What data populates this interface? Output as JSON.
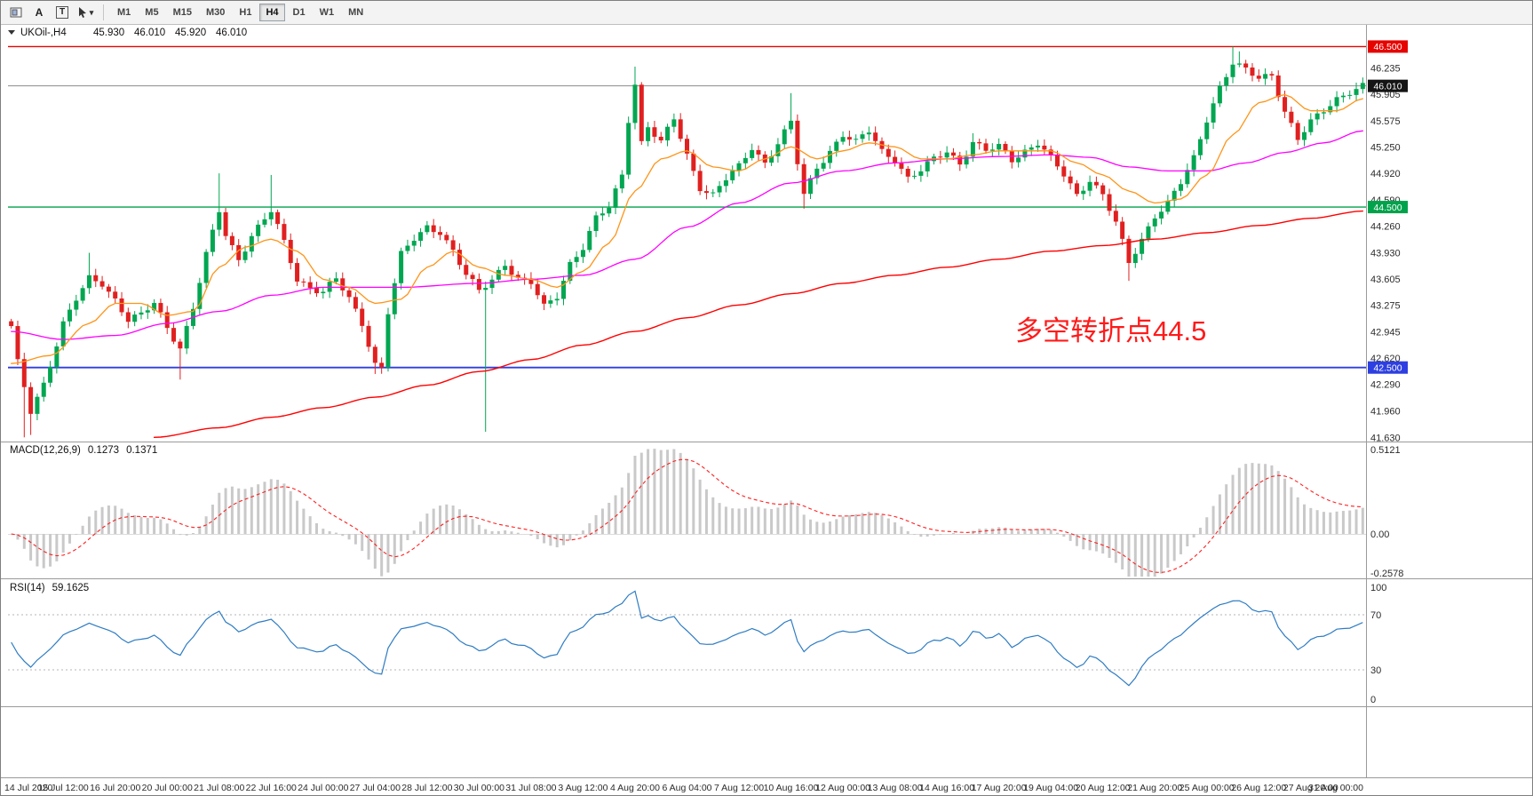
{
  "toolbar": {
    "tool_a_label": "A",
    "tool_t_label": "T",
    "timeframes": [
      "M1",
      "M5",
      "M15",
      "M30",
      "H1",
      "H4",
      "D1",
      "W1",
      "MN"
    ],
    "active_timeframe": "H4"
  },
  "header": {
    "symbol": "UKOil-,H4",
    "open": "45.930",
    "high": "46.010",
    "low": "45.920",
    "close": "46.010"
  },
  "annotation": {
    "text": "多空转折点44.5",
    "color": "#ff1a1a"
  },
  "price_axis": {
    "labels": [
      "46.235",
      "45.905",
      "45.575",
      "45.250",
      "44.920",
      "44.590",
      "44.260",
      "43.930",
      "43.605",
      "43.275",
      "42.945",
      "42.620",
      "42.290",
      "41.960",
      "41.630"
    ],
    "badges": [
      {
        "text": "46.500",
        "price": 46.5,
        "color": "#e60400"
      },
      {
        "text": "46.010",
        "price": 46.01,
        "color": "#151515"
      },
      {
        "text": "44.500",
        "price": 44.5,
        "color": "#00a24b"
      },
      {
        "text": "42.500",
        "price": 42.5,
        "color": "#2d3fe0"
      }
    ]
  },
  "time_axis": {
    "labels": [
      "14 Jul 2020",
      "15 Jul 12:00",
      "16 Jul 20:00",
      "20 Jul 00:00",
      "21 Jul 08:00",
      "22 Jul 16:00",
      "24 Jul 00:00",
      "27 Jul 04:00",
      "28 Jul 12:00",
      "30 Jul 00:00",
      "31 Jul 08:00",
      "3 Aug 12:00",
      "4 Aug 20:00",
      "6 Aug 04:00",
      "7 Aug 12:00",
      "10 Aug 16:00",
      "12 Aug 00:00",
      "13 Aug 08:00",
      "14 Aug 16:00",
      "17 Aug 20:00",
      "19 Aug 04:00",
      "20 Aug 12:00",
      "21 Aug 20:00",
      "25 Aug 00:00",
      "26 Aug 12:00",
      "27 Aug 20:00",
      "31 Aug 00:00"
    ]
  },
  "indicators": {
    "macd": {
      "name": "MACD(12,26,9)",
      "value_main": "0.1273",
      "value_signal": "0.1371",
      "fast": 12,
      "slow": 26,
      "signal": 9,
      "scale": [
        {
          "text": "0.5121",
          "value": 0.5121
        },
        {
          "text": "0.00",
          "value": 0
        },
        {
          "text": "-0.2578",
          "value": -0.2578
        }
      ],
      "histogram_color": "#c9c9c9",
      "signal_color": "#ff2020"
    },
    "rsi": {
      "name": "RSI(14)",
      "value": "59.1625",
      "period": 14,
      "scale": [
        {
          "text": "100",
          "value": 100
        },
        {
          "text": "70",
          "value": 70
        },
        {
          "text": "30",
          "value": 30
        },
        {
          "text": "0",
          "value": 0
        }
      ],
      "levels": [
        70,
        30
      ],
      "line_color": "#2e7cc3"
    }
  },
  "chart_data": {
    "type": "candlestick",
    "symbol": "UKOil-",
    "timeframe": "H4",
    "current": {
      "open": 45.93,
      "high": 46.01,
      "low": 45.92,
      "close": 46.01
    },
    "bars": 209,
    "price_range": [
      41.6,
      46.56
    ],
    "up_color": "#00a651",
    "down_color": "#e02020",
    "close_keyframes": [
      [
        0,
        43.0
      ],
      [
        1,
        42.55
      ],
      [
        3,
        41.95
      ],
      [
        5,
        42.3
      ],
      [
        8,
        43.05
      ],
      [
        10,
        43.35
      ],
      [
        12,
        43.6
      ],
      [
        14,
        43.55
      ],
      [
        16,
        43.35
      ],
      [
        18,
        43.1
      ],
      [
        20,
        43.15
      ],
      [
        22,
        43.3
      ],
      [
        24,
        43.0
      ],
      [
        26,
        42.75
      ],
      [
        28,
        43.25
      ],
      [
        30,
        43.9
      ],
      [
        32,
        44.45
      ],
      [
        33,
        44.15
      ],
      [
        35,
        43.85
      ],
      [
        37,
        44.15
      ],
      [
        40,
        44.45
      ],
      [
        42,
        44.05
      ],
      [
        44,
        43.6
      ],
      [
        46,
        43.5
      ],
      [
        48,
        43.45
      ],
      [
        50,
        43.6
      ],
      [
        52,
        43.35
      ],
      [
        54,
        43.05
      ],
      [
        56,
        42.55
      ],
      [
        57,
        42.5
      ],
      [
        58,
        43.2
      ],
      [
        60,
        43.9
      ],
      [
        62,
        44.1
      ],
      [
        64,
        44.25
      ],
      [
        66,
        44.2
      ],
      [
        68,
        43.95
      ],
      [
        70,
        43.65
      ],
      [
        72,
        43.45
      ],
      [
        74,
        43.6
      ],
      [
        76,
        43.8
      ],
      [
        78,
        43.6
      ],
      [
        80,
        43.55
      ],
      [
        82,
        43.25
      ],
      [
        84,
        43.4
      ],
      [
        86,
        43.8
      ],
      [
        88,
        44.0
      ],
      [
        90,
        44.35
      ],
      [
        92,
        44.5
      ],
      [
        94,
        44.9
      ],
      [
        95,
        45.6
      ],
      [
        96,
        46.05
      ],
      [
        97,
        45.3
      ],
      [
        98,
        45.5
      ],
      [
        100,
        45.3
      ],
      [
        102,
        45.6
      ],
      [
        104,
        45.15
      ],
      [
        106,
        44.75
      ],
      [
        108,
        44.65
      ],
      [
        110,
        44.85
      ],
      [
        112,
        45.0
      ],
      [
        114,
        45.25
      ],
      [
        116,
        45.05
      ],
      [
        118,
        45.3
      ],
      [
        120,
        45.55
      ],
      [
        121,
        45.05
      ],
      [
        122,
        44.65
      ],
      [
        124,
        45.0
      ],
      [
        126,
        45.2
      ],
      [
        128,
        45.4
      ],
      [
        130,
        45.3
      ],
      [
        132,
        45.45
      ],
      [
        134,
        45.2
      ],
      [
        136,
        45.1
      ],
      [
        138,
        44.85
      ],
      [
        140,
        44.95
      ],
      [
        142,
        45.1
      ],
      [
        144,
        45.2
      ],
      [
        146,
        45.05
      ],
      [
        148,
        45.3
      ],
      [
        150,
        45.2
      ],
      [
        152,
        45.25
      ],
      [
        154,
        45.1
      ],
      [
        156,
        45.2
      ],
      [
        158,
        45.3
      ],
      [
        160,
        45.1
      ],
      [
        162,
        44.9
      ],
      [
        164,
        44.65
      ],
      [
        166,
        44.85
      ],
      [
        168,
        44.65
      ],
      [
        170,
        44.3
      ],
      [
        172,
        43.8
      ],
      [
        174,
        44.1
      ],
      [
        176,
        44.4
      ],
      [
        178,
        44.55
      ],
      [
        180,
        44.8
      ],
      [
        182,
        45.1
      ],
      [
        184,
        45.6
      ],
      [
        186,
        46.0
      ],
      [
        188,
        46.3
      ],
      [
        190,
        46.2
      ],
      [
        192,
        46.1
      ],
      [
        194,
        46.15
      ],
      [
        196,
        45.7
      ],
      [
        198,
        45.35
      ],
      [
        200,
        45.55
      ],
      [
        202,
        45.7
      ],
      [
        204,
        45.85
      ],
      [
        206,
        45.95
      ],
      [
        208,
        46.01
      ]
    ],
    "wick_highs": [
      [
        12,
        43.93
      ],
      [
        32,
        44.92
      ],
      [
        40,
        44.9
      ],
      [
        96,
        46.25
      ],
      [
        120,
        45.92
      ],
      [
        148,
        45.42
      ],
      [
        188,
        46.5
      ],
      [
        189,
        46.44
      ]
    ],
    "wick_lows": [
      [
        2,
        41.63
      ],
      [
        3,
        41.66
      ],
      [
        26,
        42.35
      ],
      [
        56,
        42.42
      ],
      [
        73,
        41.7
      ],
      [
        122,
        44.48
      ],
      [
        172,
        43.58
      ]
    ],
    "hlines": [
      {
        "price": 46.5,
        "color": "#e60400",
        "w": 1.4
      },
      {
        "price": 44.5,
        "color": "#00a24b",
        "w": 1.4
      },
      {
        "price": 42.5,
        "color": "#2d3fe0",
        "w": 1.8
      },
      {
        "price": 46.01,
        "color": "#8c8c8c",
        "w": 1
      }
    ],
    "ma_lines": [
      {
        "name": "slow-ma",
        "color": "#ff0000",
        "w": 1.4,
        "points": [
          [
            22,
            41.63
          ],
          [
            32,
            41.75
          ],
          [
            40,
            41.88
          ],
          [
            48,
            42.0
          ],
          [
            56,
            42.13
          ],
          [
            64,
            42.28
          ],
          [
            72,
            42.45
          ],
          [
            80,
            42.6
          ],
          [
            88,
            42.78
          ],
          [
            96,
            42.95
          ],
          [
            104,
            43.12
          ],
          [
            112,
            43.28
          ],
          [
            120,
            43.42
          ],
          [
            128,
            43.55
          ],
          [
            136,
            43.65
          ],
          [
            144,
            43.75
          ],
          [
            152,
            43.85
          ],
          [
            160,
            43.95
          ],
          [
            168,
            44.02
          ],
          [
            176,
            44.1
          ],
          [
            184,
            44.18
          ],
          [
            192,
            44.27
          ],
          [
            200,
            44.36
          ],
          [
            208,
            44.45
          ]
        ]
      },
      {
        "name": "mid-ma",
        "color": "#ff00ff",
        "w": 1.3,
        "points": [
          [
            0,
            42.95
          ],
          [
            8,
            42.85
          ],
          [
            16,
            42.9
          ],
          [
            24,
            43.05
          ],
          [
            32,
            43.2
          ],
          [
            40,
            43.4
          ],
          [
            48,
            43.5
          ],
          [
            60,
            43.5
          ],
          [
            72,
            43.55
          ],
          [
            80,
            43.6
          ],
          [
            88,
            43.65
          ],
          [
            96,
            43.85
          ],
          [
            104,
            44.25
          ],
          [
            112,
            44.55
          ],
          [
            120,
            44.8
          ],
          [
            128,
            44.95
          ],
          [
            136,
            45.05
          ],
          [
            144,
            45.1
          ],
          [
            152,
            45.13
          ],
          [
            160,
            45.15
          ],
          [
            166,
            45.12
          ],
          [
            172,
            45.0
          ],
          [
            178,
            44.95
          ],
          [
            184,
            44.95
          ],
          [
            190,
            45.05
          ],
          [
            196,
            45.18
          ],
          [
            202,
            45.3
          ],
          [
            208,
            45.45
          ]
        ]
      },
      {
        "name": "fast-ma",
        "color": "#ff9418",
        "w": 1.3,
        "points": [
          [
            0,
            42.55
          ],
          [
            6,
            42.65
          ],
          [
            12,
            43.05
          ],
          [
            16,
            43.3
          ],
          [
            20,
            43.3
          ],
          [
            24,
            43.15
          ],
          [
            28,
            43.2
          ],
          [
            32,
            43.75
          ],
          [
            36,
            44.0
          ],
          [
            40,
            44.1
          ],
          [
            44,
            43.95
          ],
          [
            48,
            43.6
          ],
          [
            52,
            43.5
          ],
          [
            56,
            43.3
          ],
          [
            60,
            43.35
          ],
          [
            64,
            43.75
          ],
          [
            68,
            43.95
          ],
          [
            72,
            43.75
          ],
          [
            76,
            43.65
          ],
          [
            80,
            43.6
          ],
          [
            84,
            43.5
          ],
          [
            88,
            43.7
          ],
          [
            92,
            44.05
          ],
          [
            96,
            44.7
          ],
          [
            100,
            45.1
          ],
          [
            104,
            45.2
          ],
          [
            108,
            45.0
          ],
          [
            112,
            44.95
          ],
          [
            116,
            45.1
          ],
          [
            120,
            45.25
          ],
          [
            124,
            45.1
          ],
          [
            128,
            45.2
          ],
          [
            132,
            45.3
          ],
          [
            136,
            45.25
          ],
          [
            140,
            45.1
          ],
          [
            144,
            45.1
          ],
          [
            148,
            45.15
          ],
          [
            152,
            45.2
          ],
          [
            160,
            45.2
          ],
          [
            164,
            45.05
          ],
          [
            168,
            44.9
          ],
          [
            172,
            44.7
          ],
          [
            176,
            44.55
          ],
          [
            180,
            44.6
          ],
          [
            184,
            44.9
          ],
          [
            188,
            45.4
          ],
          [
            192,
            45.8
          ],
          [
            196,
            45.9
          ],
          [
            200,
            45.7
          ],
          [
            204,
            45.7
          ],
          [
            208,
            45.85
          ]
        ]
      }
    ]
  }
}
